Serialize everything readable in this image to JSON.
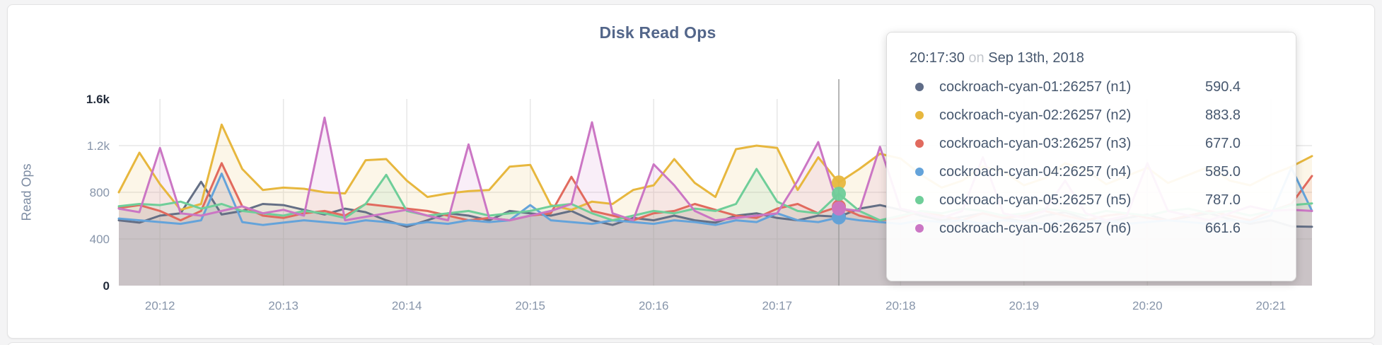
{
  "page": {
    "background": "#f4f4f5"
  },
  "card": {
    "background": "#ffffff",
    "border": "#e3e3e4"
  },
  "chart_data": {
    "type": "line",
    "title": "Disk Read Ops",
    "xlabel": "",
    "ylabel": "Read Ops",
    "ylim": [
      0,
      1600
    ],
    "grid": true,
    "legend_position": "tooltip",
    "x_start": "20:11:40",
    "x_interval_seconds": 10,
    "x_tick_labels": [
      "20:12",
      "20:13",
      "20:14",
      "20:15",
      "20:16",
      "20:17",
      "20:18",
      "20:19",
      "20:20",
      "20:21"
    ],
    "y_ticks": [
      {
        "value": 0,
        "label": "0",
        "emphasis": true,
        "grid": false
      },
      {
        "value": 400,
        "label": "400",
        "emphasis": false,
        "grid": true
      },
      {
        "value": 800,
        "label": "800",
        "emphasis": false,
        "grid": true
      },
      {
        "value": 1200,
        "label": "1.2k",
        "emphasis": false,
        "grid": true
      },
      {
        "value": 1600,
        "label": "1.6k",
        "emphasis": true,
        "grid": false
      }
    ],
    "series": [
      {
        "name": "cockroach-cyan-01:26257 (n1)",
        "node": "n1",
        "color": "#646f85",
        "values": [
          560,
          540,
          600,
          620,
          890,
          610,
          640,
          700,
          690,
          650,
          610,
          660,
          630,
          560,
          505,
          560,
          620,
          600,
          560,
          640,
          620,
          600,
          640,
          560,
          520,
          580,
          560,
          600,
          560,
          540,
          600,
          620,
          580,
          560,
          600,
          590.4,
          660,
          690,
          650,
          600,
          560,
          590,
          620,
          580,
          550,
          600,
          630,
          570,
          540,
          580,
          610,
          560,
          590,
          620,
          570,
          530,
          560,
          508,
          505
        ]
      },
      {
        "name": "cockroach-cyan-02:26257 (n2)",
        "node": "n2",
        "color": "#e7b73e",
        "values": [
          800,
          1140,
          870,
          650,
          700,
          1380,
          1000,
          820,
          840,
          830,
          800,
          790,
          1075,
          1085,
          900,
          760,
          790,
          810,
          820,
          1020,
          1035,
          690,
          650,
          720,
          700,
          820,
          860,
          1085,
          880,
          760,
          1170,
          1200,
          1180,
          820,
          1100,
          883.8,
          1000,
          1130,
          1090,
          950,
          840,
          900,
          1020,
          980,
          860,
          920,
          1050,
          990,
          870,
          940,
          1010,
          880,
          950,
          1020,
          900,
          860,
          950,
          1020,
          1110
        ]
      },
      {
        "name": "cockroach-cyan-03:26257 (n3)",
        "node": "n3",
        "color": "#e16a5e",
        "values": [
          665,
          690,
          640,
          560,
          640,
          1050,
          680,
          600,
          580,
          620,
          640,
          600,
          700,
          680,
          660,
          640,
          600,
          560,
          580,
          560,
          600,
          620,
          933,
          640,
          600,
          560,
          620,
          640,
          700,
          650,
          600,
          580,
          660,
          700,
          620,
          677,
          600,
          560,
          580,
          640,
          600,
          560,
          620,
          580,
          600,
          640,
          600,
          560,
          600,
          620,
          580,
          560,
          600,
          640,
          600,
          560,
          640,
          700,
          940
        ]
      },
      {
        "name": "cockroach-cyan-04:26257 (n4)",
        "node": "n4",
        "color": "#64a3da",
        "values": [
          575,
          560,
          545,
          530,
          560,
          960,
          545,
          520,
          540,
          560,
          545,
          530,
          560,
          545,
          520,
          545,
          530,
          560,
          545,
          560,
          690,
          560,
          545,
          530,
          560,
          545,
          530,
          560,
          545,
          520,
          560,
          545,
          620,
          560,
          545,
          585,
          560,
          545,
          530,
          560,
          545,
          560,
          530,
          560,
          545,
          530,
          560,
          545,
          560,
          530,
          545,
          560,
          545,
          530,
          560,
          545,
          600,
          1010,
          640
        ]
      },
      {
        "name": "cockroach-cyan-05:26257 (n5)",
        "node": "n5",
        "color": "#6fce99",
        "values": [
          680,
          700,
          690,
          720,
          660,
          700,
          640,
          620,
          600,
          640,
          620,
          580,
          700,
          950,
          640,
          600,
          620,
          640,
          600,
          620,
          640,
          680,
          700,
          620,
          560,
          600,
          640,
          620,
          660,
          640,
          700,
          1000,
          720,
          640,
          620,
          787,
          640,
          560,
          600,
          640,
          620,
          660,
          640,
          600,
          620,
          660,
          640,
          600,
          640,
          620,
          600,
          640,
          660,
          620,
          640,
          600,
          640,
          690,
          705
        ]
      },
      {
        "name": "cockroach-cyan-06:26257 (n6)",
        "node": "n6",
        "color": "#cb76c4",
        "values": [
          660,
          630,
          1180,
          620,
          600,
          640,
          680,
          620,
          650,
          600,
          1440,
          560,
          590,
          620,
          650,
          600,
          560,
          1210,
          580,
          560,
          600,
          640,
          700,
          1400,
          620,
          560,
          1040,
          860,
          640,
          560,
          580,
          600,
          620,
          900,
          1230,
          661.6,
          640,
          1190,
          660,
          620,
          580,
          640,
          1100,
          620,
          580,
          640,
          900,
          620,
          560,
          600,
          1050,
          640,
          600,
          560,
          620,
          680,
          640,
          650,
          640
        ]
      }
    ]
  },
  "hover": {
    "index": 35,
    "time": "20:17:30"
  },
  "tooltip": {
    "time": "20:17:30",
    "conjunction": "on",
    "date": "Sep 13th, 2018",
    "rows": [
      {
        "label": "cockroach-cyan-01:26257 (n1)",
        "value": "590.4",
        "color": "#5f6c87"
      },
      {
        "label": "cockroach-cyan-02:26257 (n2)",
        "value": "883.8",
        "color": "#e7b73e"
      },
      {
        "label": "cockroach-cyan-03:26257 (n3)",
        "value": "677.0",
        "color": "#e16a5e"
      },
      {
        "label": "cockroach-cyan-04:26257 (n4)",
        "value": "585.0",
        "color": "#64a3da"
      },
      {
        "label": "cockroach-cyan-05:26257 (n5)",
        "value": "787.0",
        "color": "#6fce99"
      },
      {
        "label": "cockroach-cyan-06:26257 (n6)",
        "value": "661.6",
        "color": "#cb76c4"
      }
    ]
  },
  "colors": {
    "tick_normal": "#8795aa",
    "tick_emphasis": "#232c3b",
    "gridline": "#e7e7e7",
    "hover_guideline": "#9e9e9e",
    "title": "#53668a",
    "tooltip_text": "#47586f"
  }
}
